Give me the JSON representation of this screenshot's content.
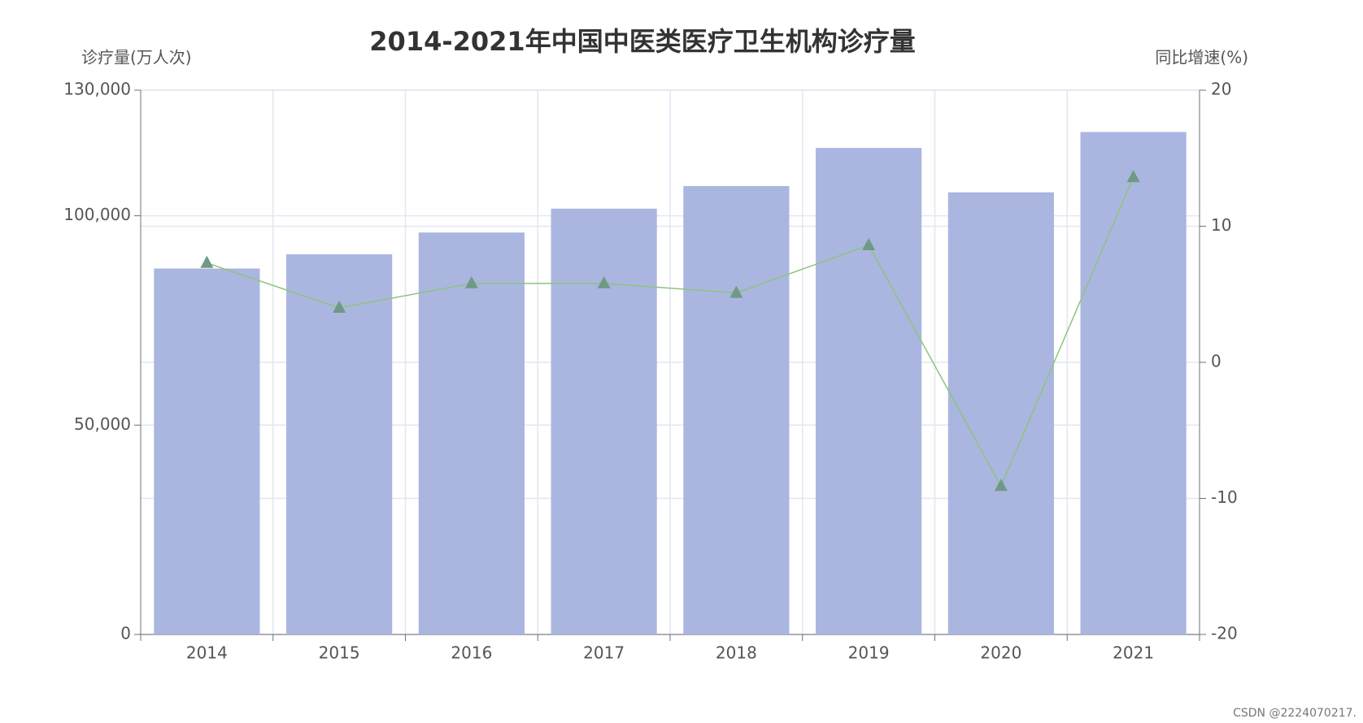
{
  "chart_data": {
    "type": "bar-line",
    "title": "2014-2021年中国中医类医疗卫生机构诊疗量",
    "y_label": "诊疗量(万人次)",
    "y2_label": "同比增速(%)",
    "categories": [
      "2014",
      "2015",
      "2016",
      "2017",
      "2018",
      "2019",
      "2020",
      "2021"
    ],
    "series": [
      {
        "name": "诊疗量",
        "type": "bar",
        "color": "#aab6e0",
        "values": [
          87400,
          90800,
          96000,
          101700,
          107100,
          116200,
          105600,
          120000
        ]
      },
      {
        "name": "同比增速",
        "type": "line",
        "axis": "y2",
        "color": "#8cc47a",
        "marker_color": "#6e9a86",
        "values": [
          7.3,
          4.0,
          5.8,
          5.8,
          5.1,
          8.6,
          -9.1,
          13.6
        ]
      }
    ],
    "ylim": [
      0,
      130000
    ],
    "yticks": [
      0,
      {
        "value": 50000,
        "label": "50,000"
      },
      {
        "value": 100000,
        "label": "100,000"
      },
      {
        "value": 130000,
        "label": "130,000"
      }
    ],
    "y2lim": [
      -20,
      20
    ],
    "y2ticks": [
      -20,
      -10,
      0,
      10,
      20
    ],
    "grid": true,
    "watermark": "CSDN @2224070217."
  }
}
